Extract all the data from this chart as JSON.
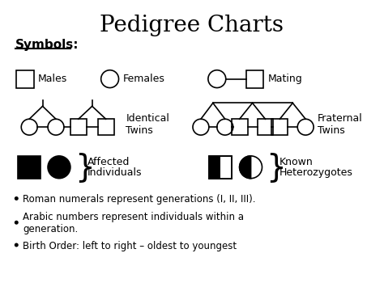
{
  "title": "Pedigree Charts",
  "symbols_label": "Symbols:",
  "background_color": "#ffffff",
  "bullet_points": [
    "Roman numerals represent generations (I, II, III).",
    "Arabic numbers represent individuals within a\ngeneration.",
    "Birth Order: left to right – oldest to youngest"
  ],
  "line_color": "#000000",
  "fill_black": "#000000",
  "fill_white": "#ffffff"
}
